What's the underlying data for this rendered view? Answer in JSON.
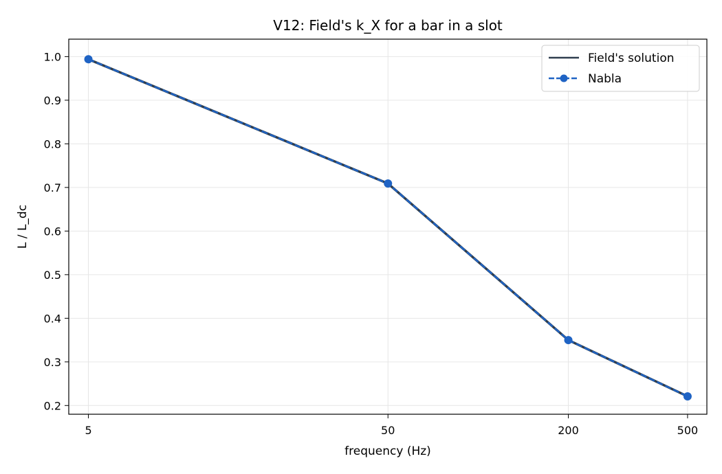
{
  "chart_data": {
    "type": "line",
    "title": "V12: Field's k_X for a bar in a slot",
    "xlabel": "frequency (Hz)",
    "ylabel": "L / L_dc",
    "xscale": "log",
    "x": [
      5,
      50,
      200,
      500
    ],
    "x_tick_labels": [
      "5",
      "50",
      "200",
      "500"
    ],
    "ylim": [
      0.18,
      1.04
    ],
    "y_ticks": [
      0.2,
      0.3,
      0.4,
      0.5,
      0.6,
      0.7,
      0.8,
      0.9,
      1.0
    ],
    "y_tick_labels": [
      "0.2",
      "0.3",
      "0.4",
      "0.5",
      "0.6",
      "0.7",
      "0.8",
      "0.9",
      "1.0"
    ],
    "grid": true,
    "legend_position": "top-right",
    "series": [
      {
        "name": "Field's solution",
        "values": [
          0.994,
          0.709,
          0.35,
          0.221
        ],
        "color": "#2f3e4e",
        "style": "solid"
      },
      {
        "name": "Nabla",
        "values": [
          0.994,
          0.709,
          0.35,
          0.221
        ],
        "color": "#1f63c4",
        "style": "dashed-marker"
      }
    ]
  }
}
